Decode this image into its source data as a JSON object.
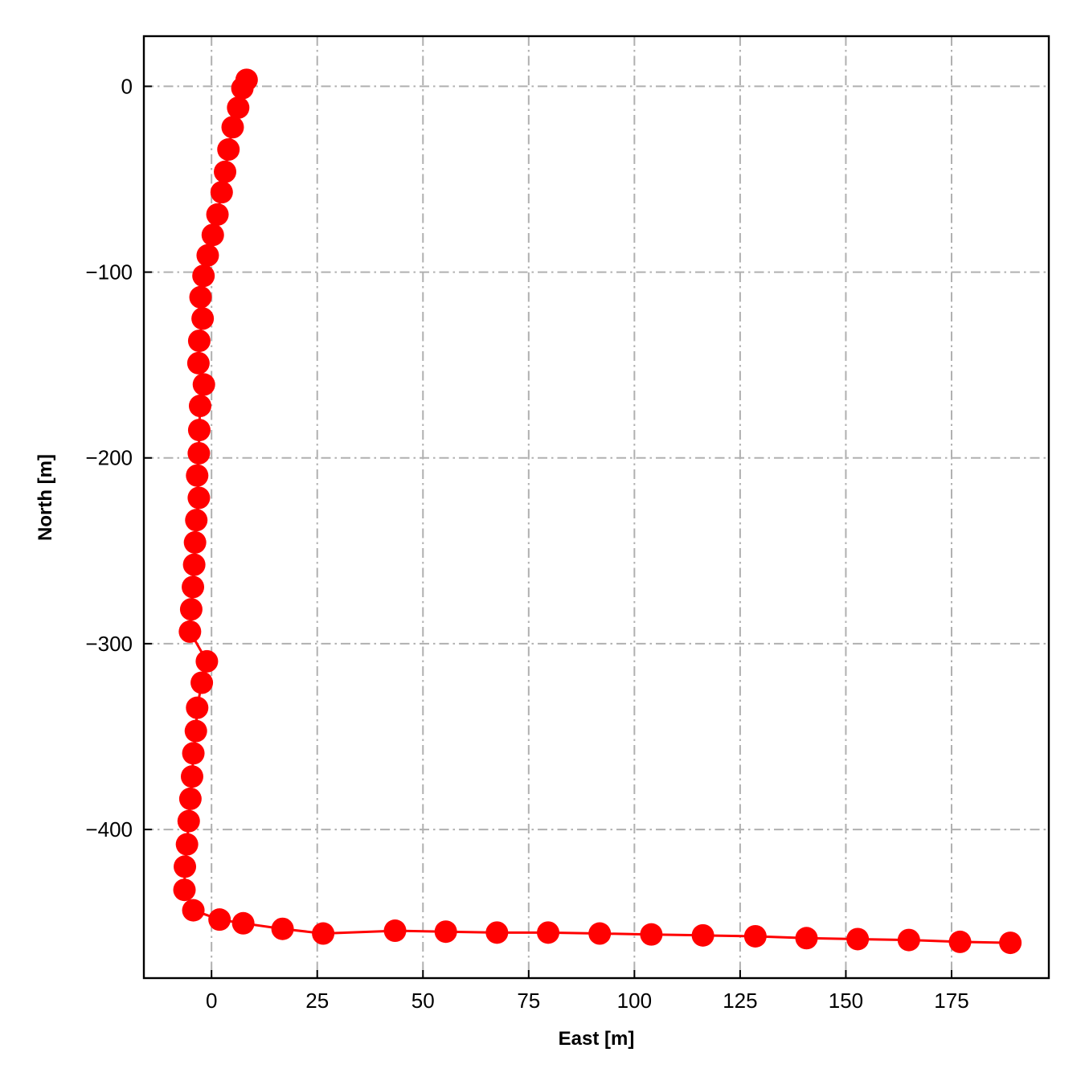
{
  "chart_data": {
    "type": "line",
    "title": "",
    "xlabel": "East [m]",
    "ylabel": "North [m]",
    "xlim": [
      -16,
      198
    ],
    "ylim": [
      -480,
      27
    ],
    "xticks": [
      0,
      25,
      50,
      75,
      100,
      125,
      150,
      175
    ],
    "yticks": [
      0,
      -100,
      -200,
      -300,
      -400
    ],
    "xtick_labels": [
      "0",
      "25",
      "50",
      "75",
      "100",
      "125",
      "150",
      "175"
    ],
    "ytick_labels": [
      "0",
      "−100",
      "−200",
      "−300",
      "−400"
    ],
    "grid": true,
    "grid_style": "dashdot",
    "legend": "none",
    "colors": {
      "series": "#ff0000",
      "grid": "#b0b0b0",
      "axes": "#000000"
    },
    "series": [
      {
        "marker": "circle",
        "points": [
          [
            8.3,
            3.5
          ],
          [
            7.3,
            -1.0
          ],
          [
            6.3,
            -11.5
          ],
          [
            5.0,
            -22.0
          ],
          [
            4.0,
            -34.0
          ],
          [
            3.2,
            -46.0
          ],
          [
            2.4,
            -57.0
          ],
          [
            1.4,
            -69.0
          ],
          [
            0.3,
            -80.0
          ],
          [
            -0.9,
            -91.0
          ],
          [
            -1.9,
            -102.0
          ],
          [
            -2.6,
            -113.5
          ],
          [
            -2.1,
            -125.0
          ],
          [
            -2.9,
            -137.0
          ],
          [
            -3.1,
            -149.0
          ],
          [
            -1.8,
            -160.5
          ],
          [
            -2.7,
            -172.0
          ],
          [
            -2.9,
            -185.0
          ],
          [
            -3.0,
            -197.5
          ],
          [
            -3.4,
            -209.5
          ],
          [
            -3.0,
            -221.5
          ],
          [
            -3.6,
            -233.5
          ],
          [
            -3.9,
            -245.5
          ],
          [
            -4.1,
            -257.5
          ],
          [
            -4.4,
            -269.5
          ],
          [
            -4.8,
            -281.5
          ],
          [
            -5.1,
            -293.5
          ],
          [
            -1.1,
            -309.5
          ],
          [
            -2.3,
            -321.0
          ],
          [
            -3.4,
            -334.5
          ],
          [
            -3.7,
            -347.0
          ],
          [
            -4.3,
            -359.0
          ],
          [
            -4.6,
            -371.5
          ],
          [
            -5.0,
            -383.5
          ],
          [
            -5.4,
            -395.5
          ],
          [
            -5.8,
            -408.0
          ],
          [
            -6.3,
            -420.0
          ],
          [
            -6.4,
            -432.5
          ],
          [
            -4.3,
            -443.5
          ],
          [
            1.9,
            -448.5
          ],
          [
            7.5,
            -450.5
          ],
          [
            16.8,
            -453.5
          ],
          [
            26.4,
            -456.0
          ],
          [
            43.4,
            -454.5
          ],
          [
            55.4,
            -455.0
          ],
          [
            67.5,
            -455.5
          ],
          [
            79.6,
            -455.5
          ],
          [
            91.8,
            -456.0
          ],
          [
            104.0,
            -456.5
          ],
          [
            116.2,
            -457.0
          ],
          [
            128.6,
            -457.5
          ],
          [
            140.7,
            -458.5
          ],
          [
            152.8,
            -459.0
          ],
          [
            164.9,
            -459.5
          ],
          [
            177.0,
            -460.5
          ],
          [
            188.9,
            -461.0
          ]
        ]
      }
    ]
  }
}
